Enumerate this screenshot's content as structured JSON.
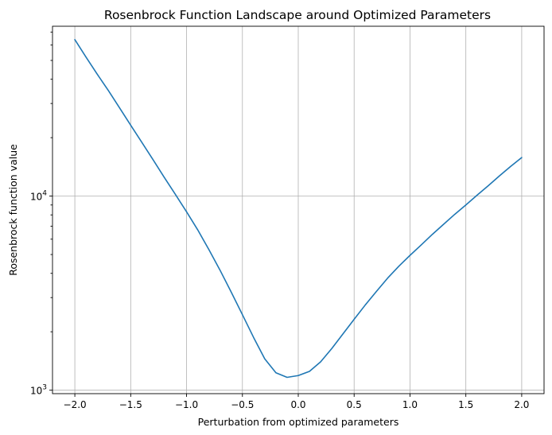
{
  "chart_data": {
    "type": "line",
    "title": "Rosenbrock Function Landscape around Optimized Parameters",
    "xlabel": "Perturbation from optimized parameters",
    "ylabel": "Rosenbrock function value",
    "yscale": "log",
    "xlim": [
      -2.2,
      2.2
    ],
    "ylim": [
      960,
      75000
    ],
    "grid": true,
    "x_ticks": [
      {
        "value": -2.0,
        "label": "−2.0"
      },
      {
        "value": -1.5,
        "label": "−1.5"
      },
      {
        "value": -1.0,
        "label": "−1.0"
      },
      {
        "value": -0.5,
        "label": "−0.5"
      },
      {
        "value": 0.0,
        "label": "0.0"
      },
      {
        "value": 0.5,
        "label": "0.5"
      },
      {
        "value": 1.0,
        "label": "1.0"
      },
      {
        "value": 1.5,
        "label": "1.5"
      },
      {
        "value": 2.0,
        "label": "2.0"
      }
    ],
    "y_ticks": [
      {
        "value": 1000,
        "base": "10",
        "exp": "3"
      },
      {
        "value": 10000,
        "base": "10",
        "exp": "4"
      }
    ],
    "series": [
      {
        "color": "#1f77b4",
        "x": [
          -2.0,
          -1.9,
          -1.8,
          -1.7,
          -1.6,
          -1.5,
          -1.4,
          -1.3,
          -1.2,
          -1.1,
          -1.0,
          -0.9,
          -0.8,
          -0.7,
          -0.6,
          -0.5,
          -0.4,
          -0.3,
          -0.2,
          -0.1,
          0.0,
          0.1,
          0.2,
          0.3,
          0.4,
          0.5,
          0.6,
          0.7,
          0.8,
          0.9,
          1.0,
          1.1,
          1.2,
          1.3,
          1.4,
          1.5,
          1.6,
          1.7,
          1.8,
          1.9,
          2.0
        ],
        "y": [
          64000,
          52000,
          42500,
          35000,
          28500,
          23200,
          18900,
          15400,
          12500,
          10200,
          8300,
          6700,
          5300,
          4150,
          3200,
          2450,
          1870,
          1450,
          1230,
          1165,
          1190,
          1250,
          1400,
          1640,
          1950,
          2320,
          2750,
          3230,
          3780,
          4350,
          4950,
          5600,
          6350,
          7150,
          8050,
          9000,
          10100,
          11300,
          12700,
          14200,
          15800
        ]
      }
    ]
  }
}
